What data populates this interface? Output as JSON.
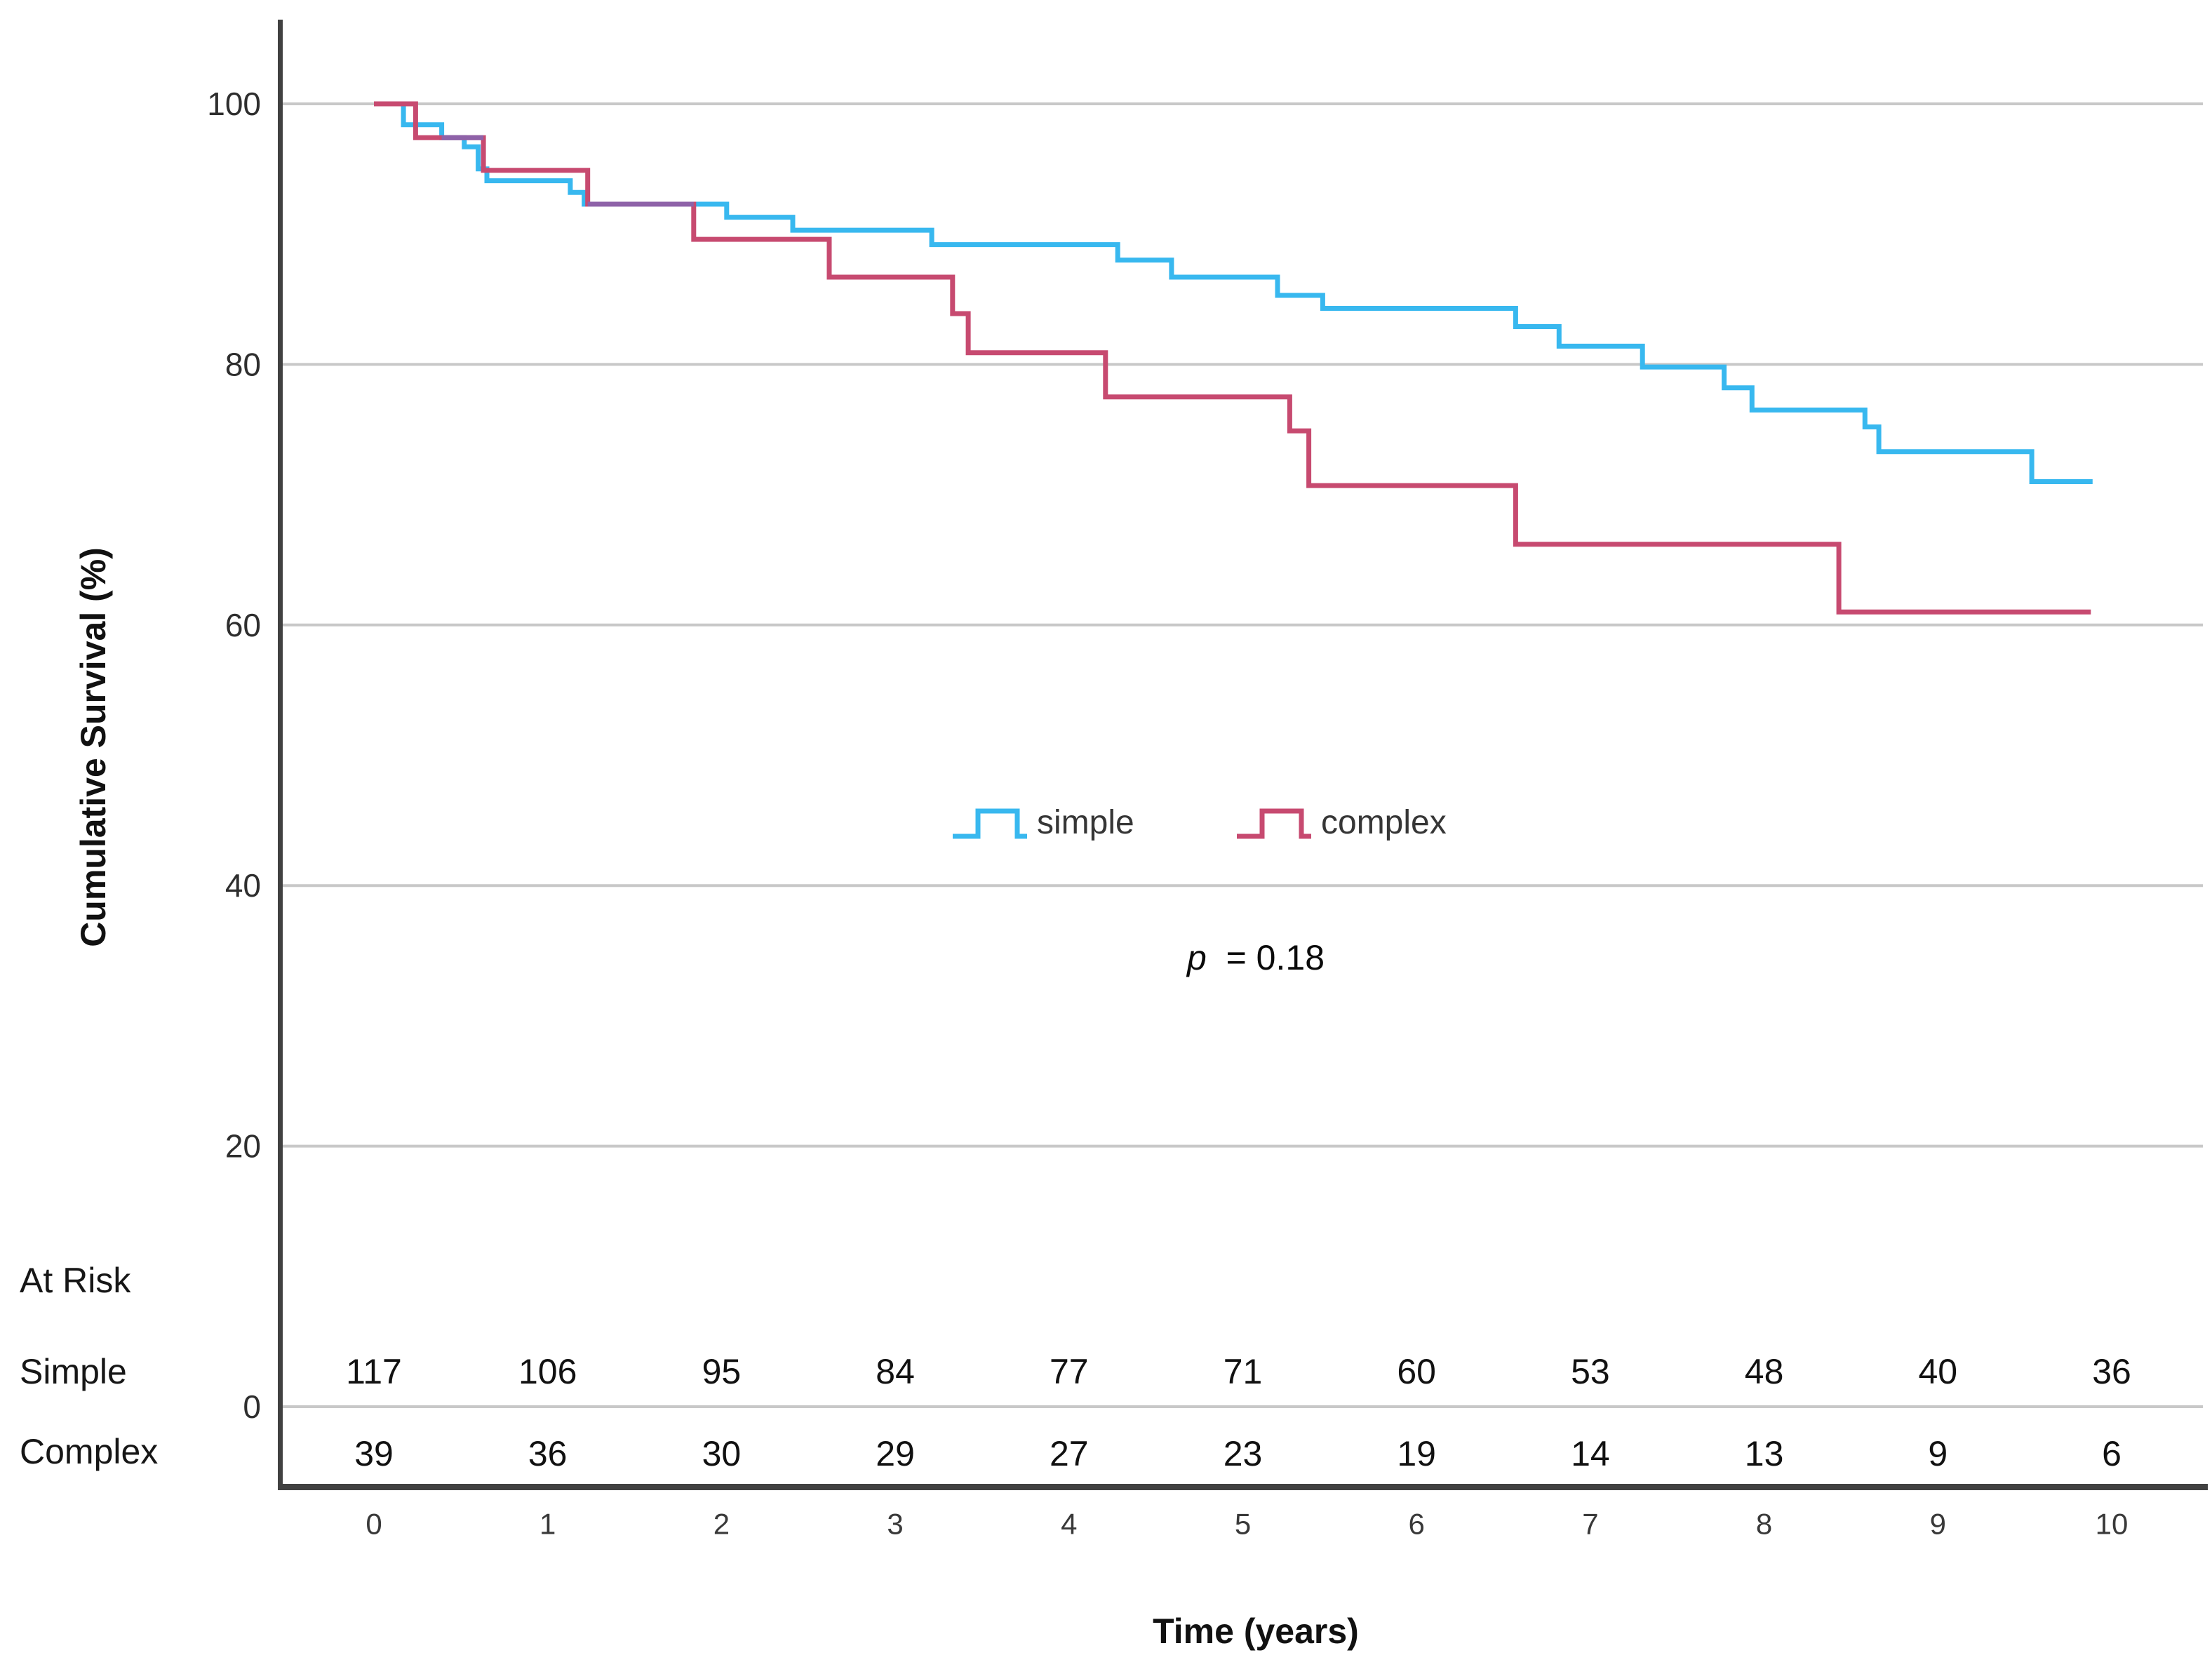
{
  "chart_data": {
    "type": "line",
    "subtype": "kaplan-meier-step",
    "title": "",
    "xlabel": "Time (years)",
    "ylabel": "Cumulative Survival (%)",
    "xlim": [
      0,
      10.4
    ],
    "ylim": [
      0,
      100
    ],
    "xticks": [
      0,
      1,
      2,
      3,
      4,
      5,
      6,
      7,
      8,
      9,
      10
    ],
    "yticks": [
      100,
      80,
      60,
      40,
      20,
      0
    ],
    "grid": true,
    "legend_position": "center-of-plot",
    "pvalue": {
      "var": "p",
      "rest": " = 0.18"
    },
    "colors": {
      "grid": "#c8c8c8",
      "axis": "#414141",
      "overlap": "#8e62a8"
    },
    "series": [
      {
        "name": "simple",
        "label": "simple",
        "color": "#38b8ef",
        "end_time": 9.89,
        "steps": [
          [
            0,
            100
          ],
          [
            0.17,
            98.4
          ],
          [
            0.39,
            97.4
          ],
          [
            0.52,
            96.7
          ],
          [
            0.6,
            95.0
          ],
          [
            0.65,
            94.1
          ],
          [
            1.13,
            93.2
          ],
          [
            1.21,
            92.3
          ],
          [
            2.03,
            91.3
          ],
          [
            2.41,
            90.3
          ],
          [
            3.21,
            89.2
          ],
          [
            4.28,
            88.0
          ],
          [
            4.59,
            86.7
          ],
          [
            5.2,
            85.3
          ],
          [
            5.46,
            84.3
          ],
          [
            6.57,
            82.9
          ],
          [
            6.82,
            81.4
          ],
          [
            7.3,
            79.8
          ],
          [
            7.77,
            78.2
          ],
          [
            7.93,
            76.5
          ],
          [
            8.58,
            75.2
          ],
          [
            8.66,
            73.3
          ],
          [
            9.54,
            71.0
          ]
        ]
      },
      {
        "name": "complex",
        "label": "complex",
        "color": "#c74a70",
        "end_time": 9.88,
        "steps": [
          [
            0,
            100
          ],
          [
            0.24,
            97.4
          ],
          [
            0.63,
            94.9
          ],
          [
            1.23,
            92.3
          ],
          [
            1.84,
            89.6
          ],
          [
            2.62,
            86.7
          ],
          [
            3.33,
            83.9
          ],
          [
            3.42,
            80.9
          ],
          [
            4.21,
            77.5
          ],
          [
            5.27,
            74.9
          ],
          [
            5.38,
            70.7
          ],
          [
            6.57,
            66.2
          ],
          [
            8.43,
            61.0
          ]
        ]
      }
    ],
    "overlaps": [
      {
        "value": 92.3,
        "t1": 1.23,
        "t2": 1.84
      },
      {
        "value": 97.4,
        "t1": 0.39,
        "t2": 0.63
      }
    ]
  },
  "at_risk": {
    "heading": "At Risk",
    "rows": [
      {
        "label": "Simple",
        "values": [
          117,
          106,
          95,
          84,
          77,
          71,
          60,
          53,
          48,
          40,
          36
        ]
      },
      {
        "label": "Complex",
        "values": [
          39,
          36,
          30,
          29,
          27,
          23,
          19,
          14,
          13,
          9,
          6
        ]
      }
    ]
  }
}
